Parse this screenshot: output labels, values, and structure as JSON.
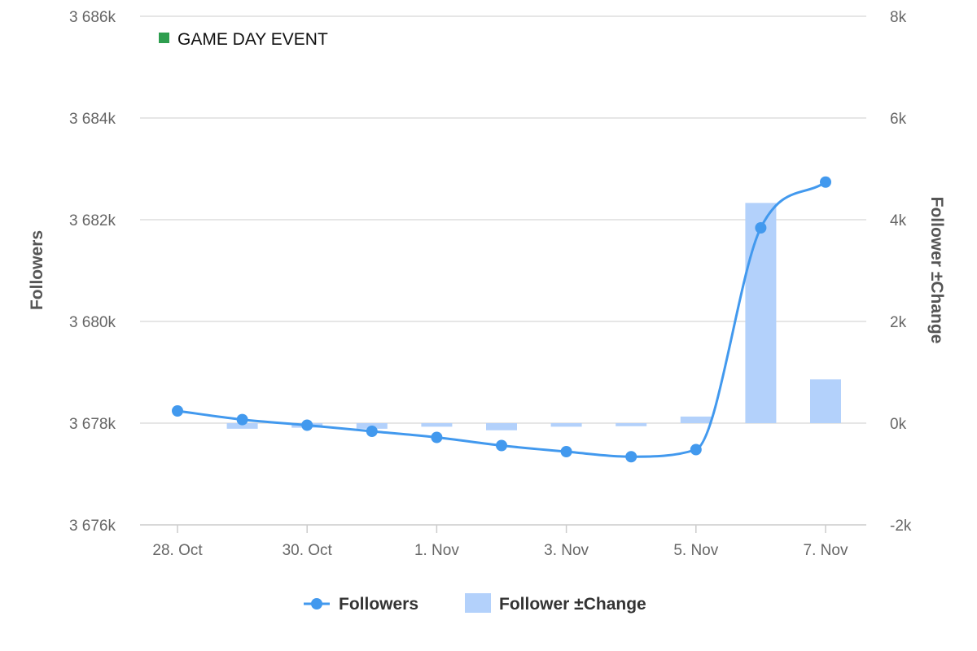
{
  "chart_data": {
    "type": "line",
    "x": [
      "28. Oct",
      "29. Oct",
      "30. Oct",
      "31. Oct",
      "1. Nov",
      "2. Nov",
      "3. Nov",
      "4. Nov",
      "5. Nov",
      "6. Nov",
      "7. Nov"
    ],
    "x_tick_labels": [
      "28. Oct",
      "30. Oct",
      "1. Nov",
      "3. Nov",
      "5. Nov",
      "7. Nov"
    ],
    "series": [
      {
        "name": "Followers",
        "type": "spline",
        "axis": "left",
        "color": "#4299ee",
        "values": [
          3678240,
          3678070,
          3677960,
          3677840,
          3677720,
          3677560,
          3677440,
          3677340,
          3677480,
          3681840,
          3682740
        ]
      },
      {
        "name": "Follower ±Change",
        "type": "column",
        "axis": "right",
        "color": "#b3d1fb",
        "values": [
          0,
          -110,
          -90,
          -110,
          -70,
          -140,
          -70,
          -60,
          130,
          4330,
          860
        ]
      }
    ],
    "y_left": {
      "title": "Followers",
      "range": [
        3676000,
        3686000
      ],
      "tick_labels": [
        "3 676k",
        "3 678k",
        "3 680k",
        "3 682k",
        "3 684k",
        "3 686k"
      ]
    },
    "y_right": {
      "title": "Follower ±Change",
      "range": [
        -2000,
        8000
      ],
      "tick_labels": [
        "-2k",
        "0k",
        "2k",
        "4k",
        "6k",
        "8k"
      ]
    },
    "event_legend": {
      "label": "GAME DAY EVENT",
      "color": "#2e9e4f"
    },
    "grid": true,
    "legend_position": "bottom-center"
  }
}
